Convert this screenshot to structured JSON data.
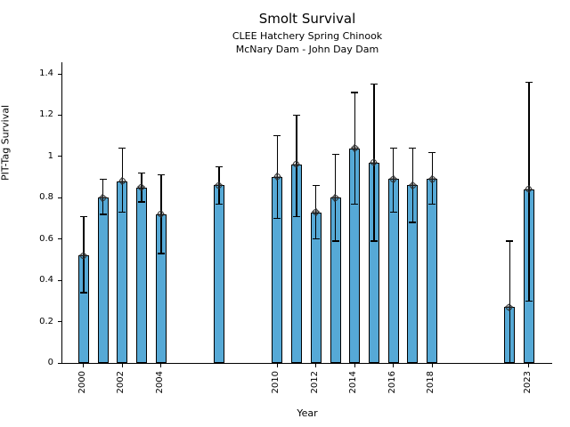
{
  "chart_data": {
    "type": "bar",
    "title": "Smolt Survival",
    "subtitle": [
      "CLEE Hatchery Spring Chinook",
      "McNary Dam - John Day Dam"
    ],
    "xlabel": "Year",
    "ylabel": "PIT-Tag Survival",
    "xlim": [
      1998.9,
      2024.2
    ],
    "ylim": [
      0,
      1.456
    ],
    "grid": false,
    "legend": "none",
    "bar_color": "#56A9D6",
    "bar_edge_color": "#000000",
    "error_color": "#000000",
    "marker": "circle-plus",
    "x_ticks": [
      {
        "value": 2000,
        "label": "2000"
      },
      {
        "value": 2002,
        "label": "2002"
      },
      {
        "value": 2004,
        "label": "2004"
      },
      {
        "value": 2010,
        "label": "2010"
      },
      {
        "value": 2012,
        "label": "2012"
      },
      {
        "value": 2014,
        "label": "2014"
      },
      {
        "value": 2016,
        "label": "2016"
      },
      {
        "value": 2018,
        "label": "2018"
      },
      {
        "value": 2023,
        "label": "2023"
      }
    ],
    "y_ticks": [
      {
        "value": 0,
        "label": "0"
      },
      {
        "value": 0.2,
        "label": "0.2"
      },
      {
        "value": 0.4,
        "label": "0.4"
      },
      {
        "value": 0.6,
        "label": "0.6"
      },
      {
        "value": 0.8,
        "label": "0.8"
      },
      {
        "value": 1,
        "label": "1"
      },
      {
        "value": 1.2,
        "label": "1.2"
      },
      {
        "value": 1.4,
        "label": "1.4"
      }
    ],
    "points": [
      {
        "year": 2000,
        "value": 0.52,
        "ci_low": 0.34,
        "ci_high": 0.71
      },
      {
        "year": 2001,
        "value": 0.8,
        "ci_low": 0.72,
        "ci_high": 0.89
      },
      {
        "year": 2002,
        "value": 0.88,
        "ci_low": 0.73,
        "ci_high": 1.04
      },
      {
        "year": 2003,
        "value": 0.85,
        "ci_low": 0.78,
        "ci_high": 0.92
      },
      {
        "year": 2004,
        "value": 0.72,
        "ci_low": 0.53,
        "ci_high": 0.91
      },
      {
        "year": 2007,
        "value": 0.86,
        "ci_low": 0.77,
        "ci_high": 0.95
      },
      {
        "year": 2010,
        "value": 0.9,
        "ci_low": 0.7,
        "ci_high": 1.1
      },
      {
        "year": 2011,
        "value": 0.96,
        "ci_low": 0.71,
        "ci_high": 1.2
      },
      {
        "year": 2012,
        "value": 0.73,
        "ci_low": 0.6,
        "ci_high": 0.86
      },
      {
        "year": 2013,
        "value": 0.8,
        "ci_low": 0.59,
        "ci_high": 1.01
      },
      {
        "year": 2014,
        "value": 1.04,
        "ci_low": 0.77,
        "ci_high": 1.31
      },
      {
        "year": 2015,
        "value": 0.97,
        "ci_low": 0.59,
        "ci_high": 1.35
      },
      {
        "year": 2016,
        "value": 0.89,
        "ci_low": 0.73,
        "ci_high": 1.04
      },
      {
        "year": 2017,
        "value": 0.86,
        "ci_low": 0.68,
        "ci_high": 1.04
      },
      {
        "year": 2018,
        "value": 0.89,
        "ci_low": 0.77,
        "ci_high": 1.02
      },
      {
        "year": 2022,
        "value": 0.27,
        "ci_low": 0.0,
        "ci_high": 0.59
      },
      {
        "year": 2023,
        "value": 0.84,
        "ci_low": 0.3,
        "ci_high": 1.36
      }
    ]
  }
}
